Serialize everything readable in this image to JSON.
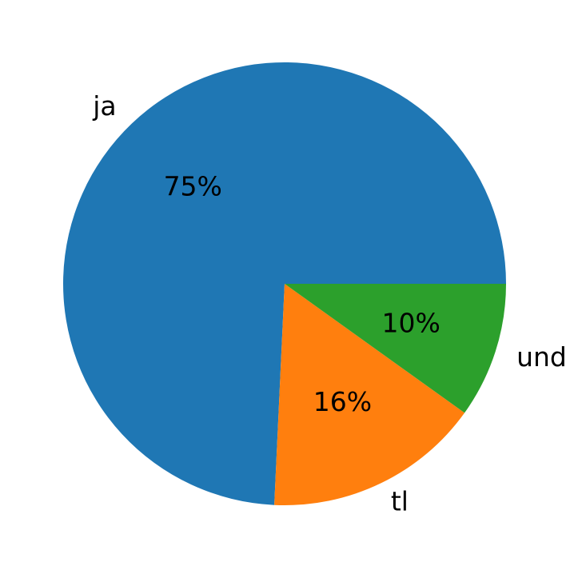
{
  "chart_data": {
    "type": "pie",
    "categories": [
      "ja",
      "tl",
      "und"
    ],
    "values": [
      75,
      16,
      10
    ],
    "value_labels": [
      "75%",
      "16%",
      "10%"
    ],
    "colors": [
      "#1f77b4",
      "#ff7f0e",
      "#2ca02c"
    ]
  }
}
